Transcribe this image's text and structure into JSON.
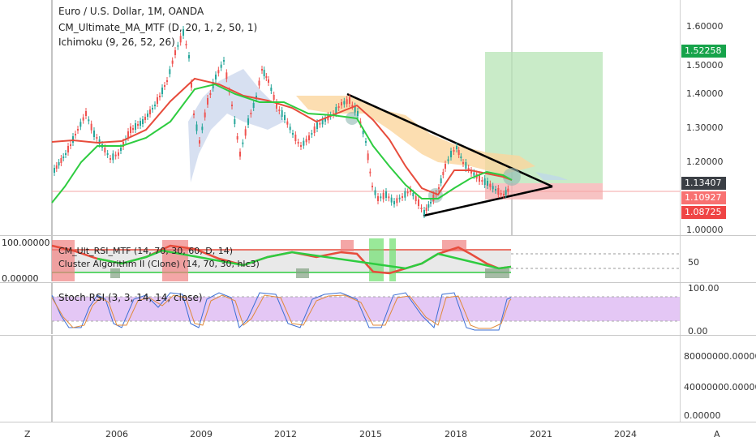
{
  "main_legend": {
    "symbol": "Euro / U.S. Dollar, 1M, OANDA",
    "ind1": "CM_Ultimate_MA_MTF (D, 20, 1, 2, 50, 1)",
    "ind2": "Ichimoku (9, 26, 52, 26)"
  },
  "price_axis": [
    "1.60000",
    "1.50000",
    "1.40000",
    "1.30000",
    "1.20000",
    "1.00000"
  ],
  "price_tags": {
    "target": "1.52258",
    "current": "1.13407",
    "mid": "1.10927",
    "stop": "1.08725"
  },
  "osc1": {
    "legend1": "CM_Ult_RSI_MTF (14, 70, 30, 60, D, 14)",
    "legend2": "Cluster Algorithm II (Clone) (14, 70, 30, hlc3)",
    "left_top": "100.00000",
    "left_bottom": "0.00000",
    "right_mid": "50"
  },
  "osc2": {
    "legend": "Stoch RSI (3, 3, 14, 14, close)",
    "right_top": "100.00",
    "right_bottom": "0.00"
  },
  "volume_axis": [
    "80000000.00000",
    "40000000.00000",
    "0.00000"
  ],
  "time_axis": [
    "2006",
    "2009",
    "2012",
    "2015",
    "2018",
    "2021",
    "2024"
  ],
  "corners": {
    "left": "Z",
    "right": "A"
  },
  "colors": {
    "bull": "#26a69a",
    "bear": "#ef5350",
    "ma_green": "#2ecc40",
    "ma_red": "#e74c3c",
    "target_zone": "#b7e4b5",
    "stop_zone": "#f5b4b4",
    "stoch_band": "#e4c7f5"
  }
}
